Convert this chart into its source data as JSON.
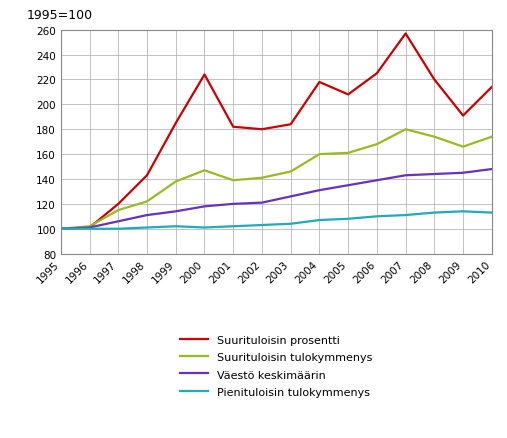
{
  "years": [
    1995,
    1996,
    1997,
    1998,
    1999,
    2000,
    2001,
    2002,
    2003,
    2004,
    2005,
    2006,
    2007,
    2008,
    2009,
    2010
  ],
  "series_order": [
    "Suurituloisin prosentti",
    "Suurituloisin tulokymmenys",
    "Väestö keskimäärin",
    "Pienituloisin tulokymmenys"
  ],
  "series": {
    "Suurituloisin prosentti": [
      100,
      101,
      120,
      143,
      185,
      224,
      182,
      180,
      184,
      218,
      208,
      225,
      257,
      220,
      191,
      214
    ],
    "Suurituloisin tulokymmenys": [
      100,
      102,
      115,
      122,
      138,
      147,
      139,
      141,
      146,
      160,
      161,
      168,
      180,
      174,
      166,
      174
    ],
    "Väestö keskimäärin": [
      100,
      101,
      106,
      111,
      114,
      118,
      120,
      121,
      126,
      131,
      135,
      139,
      143,
      144,
      145,
      148
    ],
    "Pienituloisin tulokymmenys": [
      100,
      100,
      100,
      101,
      102,
      101,
      102,
      103,
      104,
      107,
      108,
      110,
      111,
      113,
      114,
      113
    ]
  },
  "colors": {
    "Suurituloisin prosentti": "#cc0000",
    "Suurituloisin tulokymmenys": "#99bb22",
    "Väestö keskimäärin": "#6633bb",
    "Pienituloisin tulokymmenys": "#22aabb"
  },
  "ylabel_text": "1995=100",
  "ylim": [
    80,
    260
  ],
  "yticks": [
    80,
    100,
    120,
    140,
    160,
    180,
    200,
    220,
    240,
    260
  ],
  "xlim_min": 1995,
  "xlim_max": 2010,
  "background_color": "#ffffff",
  "grid_color": "#aaaaaa",
  "linewidth": 1.6,
  "title_fontsize": 9,
  "legend_fontsize": 8,
  "tick_fontsize": 7.5
}
